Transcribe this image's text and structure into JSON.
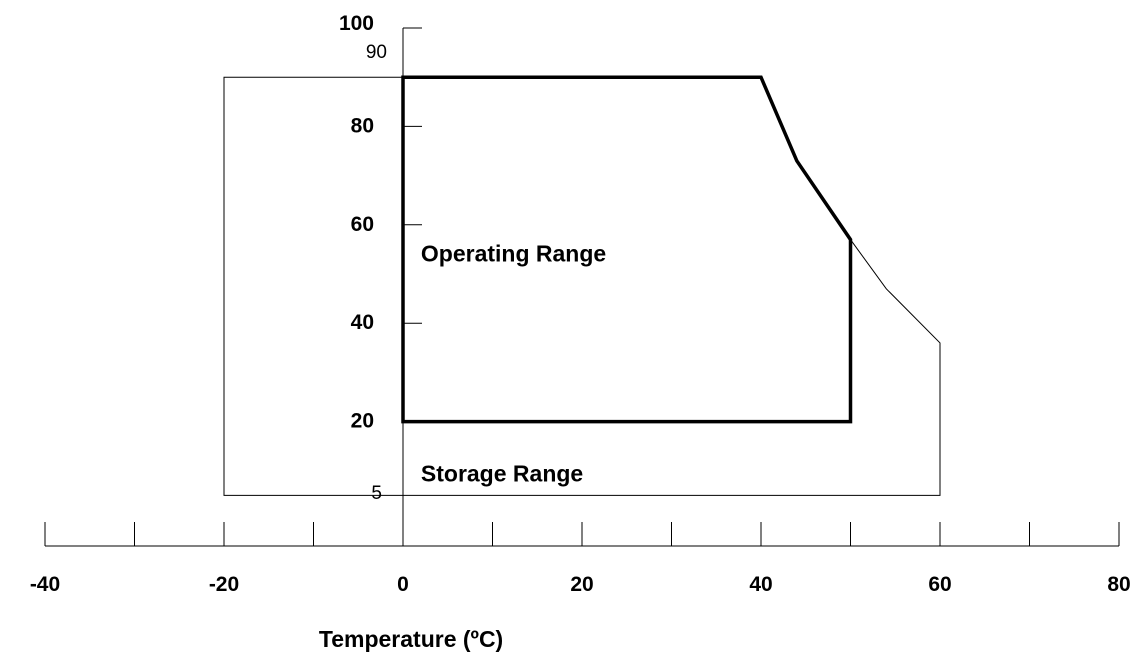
{
  "chart_data": {
    "type": "area",
    "xlabel": "Temperature (ºC)",
    "ylabel": "",
    "xlim": [
      -40,
      80
    ],
    "ylim": [
      0,
      100
    ],
    "x_ticks": [
      "-40",
      "-20",
      "0",
      "20",
      "40",
      "60",
      "80"
    ],
    "y_ticks_bold": [
      "100",
      "80",
      "60",
      "40",
      "20"
    ],
    "y_ticks_plain": [
      "90",
      "5"
    ],
    "series": [
      {
        "label": "Operating Range",
        "points": [
          [
            0,
            20
          ],
          [
            0,
            90
          ],
          [
            40,
            90
          ],
          [
            44,
            73
          ],
          [
            50,
            57
          ],
          [
            50,
            20
          ]
        ]
      },
      {
        "label": "Storage Range",
        "points": [
          [
            -20,
            5
          ],
          [
            -20,
            90
          ],
          [
            40,
            90
          ],
          [
            44,
            73
          ],
          [
            50,
            57
          ],
          [
            54,
            47
          ],
          [
            60,
            36
          ],
          [
            60,
            5
          ]
        ]
      }
    ],
    "grid": false,
    "legend": "none"
  }
}
